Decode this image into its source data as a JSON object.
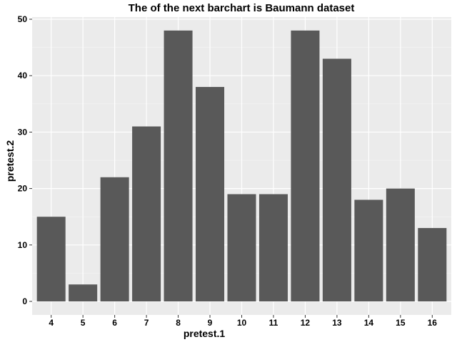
{
  "chart_data": {
    "type": "bar",
    "title": "The of the next barchart is Baumann dataset",
    "xlabel": "pretest.1",
    "ylabel": "pretest.2",
    "categories": [
      "4",
      "5",
      "6",
      "7",
      "8",
      "9",
      "10",
      "11",
      "12",
      "13",
      "14",
      "15",
      "16"
    ],
    "values": [
      15,
      3,
      22,
      31,
      48,
      38,
      19,
      19,
      48,
      43,
      18,
      20,
      13
    ],
    "ylim": [
      0,
      50
    ],
    "yticks": [
      0,
      10,
      20,
      30,
      40,
      50
    ],
    "grid": true,
    "legend": "none",
    "colors": {
      "bar": "#595959",
      "panel_background": "#ebebeb",
      "grid_major": "#ffffff",
      "grid_minor": "#f5f5f5"
    }
  }
}
